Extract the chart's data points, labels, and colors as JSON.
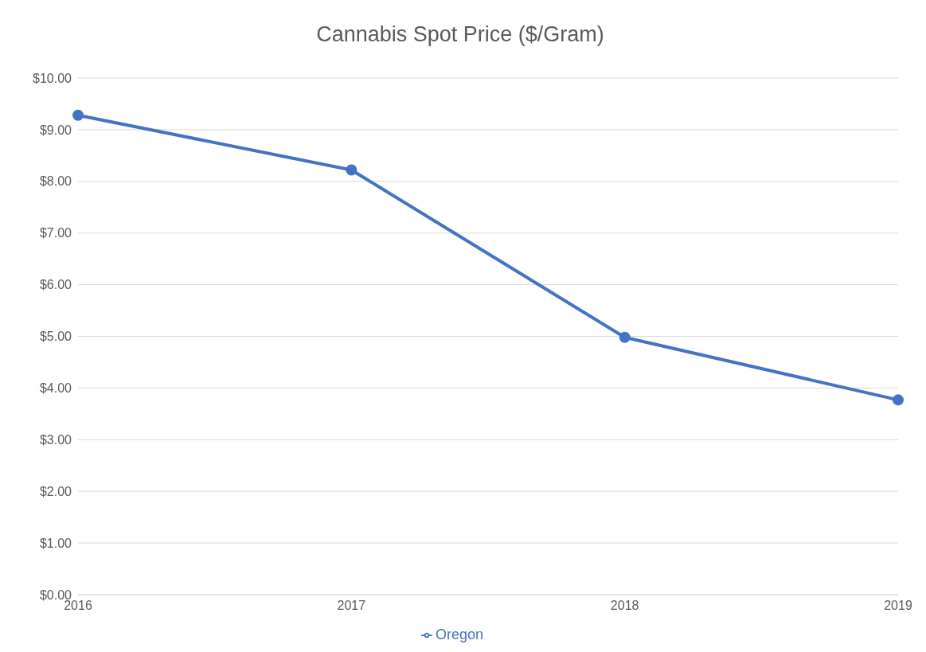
{
  "chart_data": {
    "type": "line",
    "title": "Cannabis Spot Price ($/Gram)",
    "categories": [
      "2016",
      "2017",
      "2018",
      "2019"
    ],
    "series": [
      {
        "name": "Oregon",
        "color": "#4472c4",
        "values": [
          9.28,
          8.22,
          4.98,
          3.77
        ]
      }
    ],
    "ylim": [
      0,
      10
    ],
    "yticks": [
      {
        "value": 0,
        "label": "$0.00"
      },
      {
        "value": 1,
        "label": "$1.00"
      },
      {
        "value": 2,
        "label": "$2.00"
      },
      {
        "value": 3,
        "label": "$3.00"
      },
      {
        "value": 4,
        "label": "$4.00"
      },
      {
        "value": 5,
        "label": "$5.00"
      },
      {
        "value": 6,
        "label": "$6.00"
      },
      {
        "value": 7,
        "label": "$7.00"
      },
      {
        "value": 8,
        "label": "$8.00"
      },
      {
        "value": 9,
        "label": "$9.00"
      },
      {
        "value": 10,
        "label": "$10.00"
      }
    ],
    "grid": "y",
    "legend": "bottom",
    "marker": "circle",
    "line_style": "solid"
  }
}
